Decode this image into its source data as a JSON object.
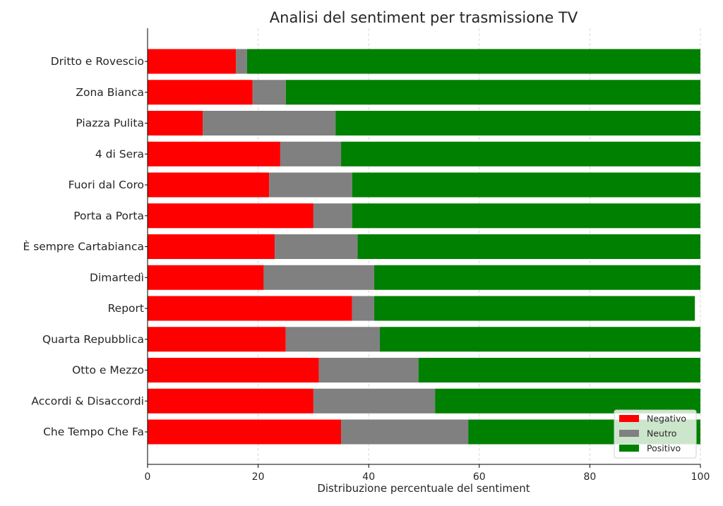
{
  "chart_data": {
    "type": "bar",
    "orientation": "horizontal",
    "stacked": true,
    "title": "Analisi del sentiment per trasmissione TV",
    "xlabel": "Distribuzione percentuale del sentiment",
    "ylabel": "",
    "xlim": [
      0,
      100
    ],
    "xticks": [
      0,
      20,
      40,
      60,
      80,
      100
    ],
    "grid": true,
    "legend_position": "bottom-right",
    "categories": [
      "Dritto e Rovescio",
      "Zona Bianca",
      "Piazza Pulita",
      "4 di Sera",
      "Fuori dal Coro",
      "Porta a Porta",
      "È sempre Cartabianca",
      "Dimartedì",
      "Report",
      "Quarta Repubblica",
      "Otto e Mezzo",
      "Accordi & Disaccordi",
      "Che Tempo Che Fa"
    ],
    "series": [
      {
        "name": "Negativo",
        "color": "#ff0000",
        "values": [
          16,
          19,
          10,
          24,
          22,
          30,
          23,
          21,
          37,
          25,
          31,
          30,
          35
        ]
      },
      {
        "name": "Neutro",
        "color": "#808080",
        "values": [
          2,
          6,
          24,
          11,
          15,
          7,
          15,
          20,
          4,
          17,
          18,
          22,
          23
        ]
      },
      {
        "name": "Positivo",
        "color": "#008000",
        "values": [
          82,
          75,
          66,
          65,
          63,
          63,
          62,
          59,
          58,
          58,
          51,
          48,
          42
        ]
      }
    ]
  }
}
